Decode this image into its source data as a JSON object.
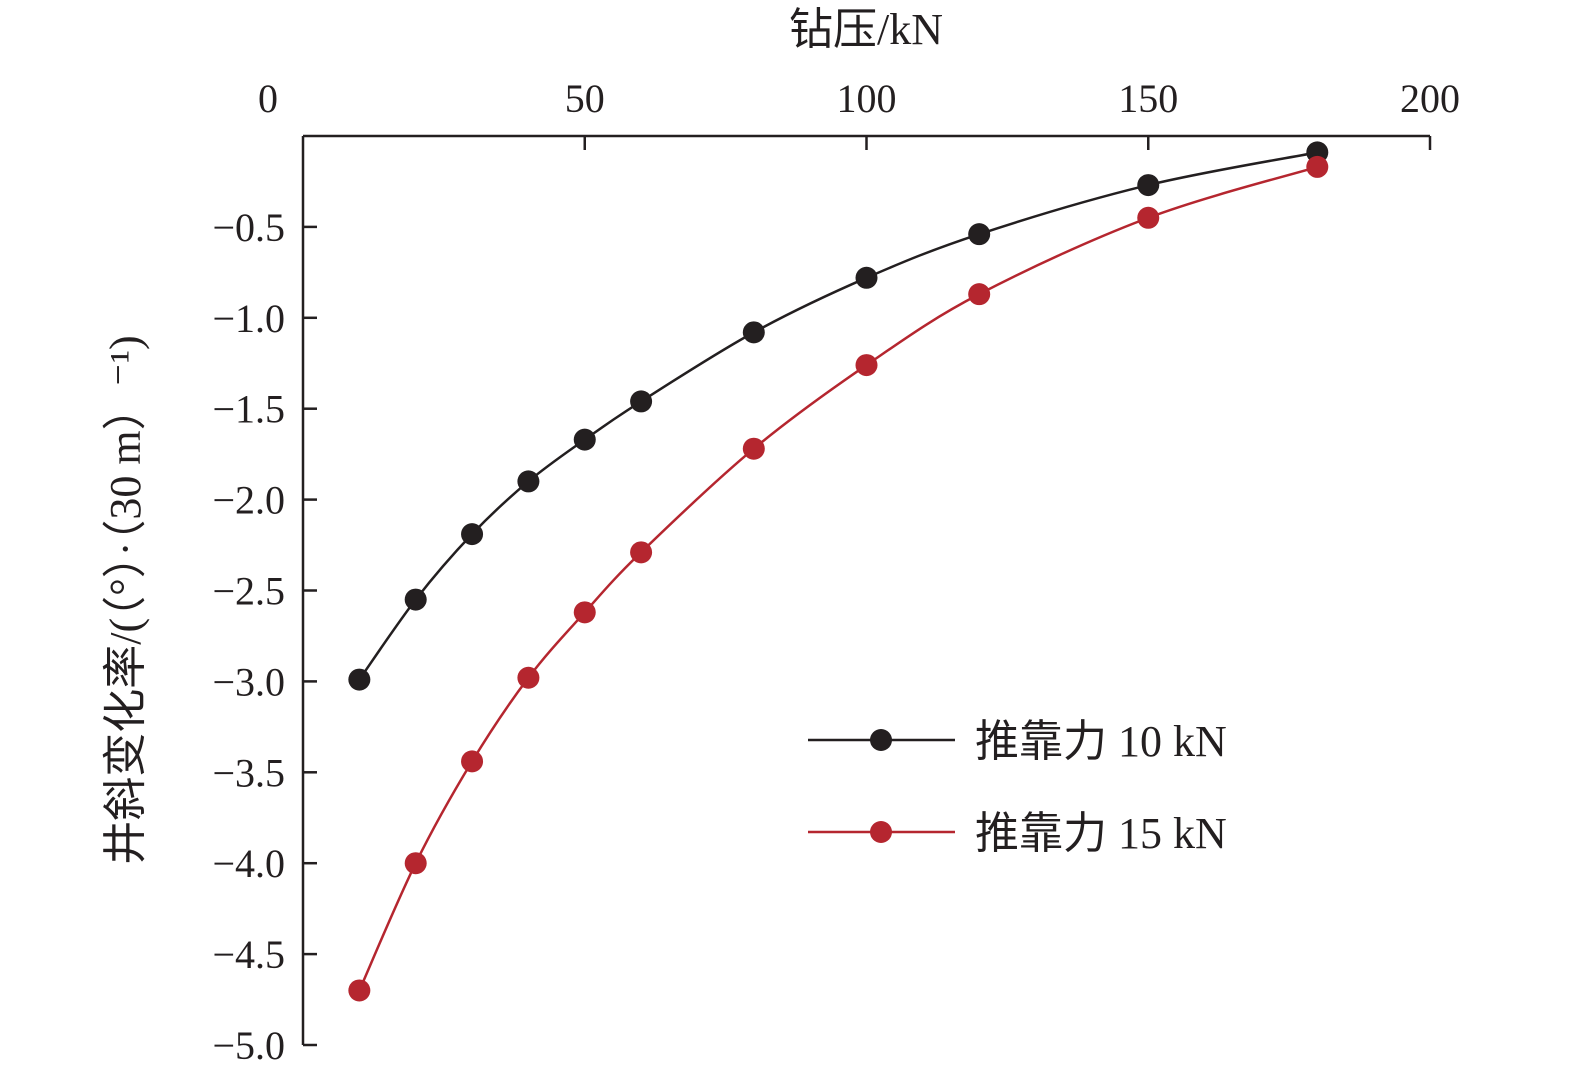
{
  "chart_data": {
    "type": "line",
    "xlabel": "钻压/kN",
    "ylabel": "井斜变化率/(（°）·（30 m）⁻¹)",
    "xlim": [
      0,
      200
    ],
    "ylim": [
      -5.0,
      0
    ],
    "x_axis_position": "top",
    "x_ticks": [
      0,
      50,
      100,
      150,
      200
    ],
    "x_tick_labels": [
      "0",
      "50",
      "100",
      "150",
      "200"
    ],
    "y_ticks": [
      -0.5,
      -1.0,
      -1.5,
      -2.0,
      -2.5,
      -3.0,
      -3.5,
      -4.0,
      -4.5,
      -5.0
    ],
    "y_tick_labels": [
      "−0.5",
      "−1.0",
      "−1.5",
      "−2.0",
      "−2.5",
      "−3.0",
      "−3.5",
      "−4.0",
      "−4.5",
      "−5.0"
    ],
    "grid": false,
    "legend_position": "bottom-right",
    "series": [
      {
        "name": "推靠力 10 kN",
        "color": "#231f20",
        "x": [
          10,
          20,
          30,
          40,
          50,
          60,
          80,
          100,
          120,
          150,
          180
        ],
        "y": [
          -2.99,
          -2.55,
          -2.19,
          -1.9,
          -1.67,
          -1.46,
          -1.08,
          -0.78,
          -0.54,
          -0.27,
          -0.09
        ]
      },
      {
        "name": "推靠力 15 kN",
        "color": "#b5262f",
        "x": [
          10,
          20,
          30,
          40,
          50,
          60,
          80,
          100,
          120,
          150,
          180
        ],
        "y": [
          -4.7,
          -4.0,
          -3.44,
          -2.98,
          -2.62,
          -2.29,
          -1.72,
          -1.26,
          -0.87,
          -0.45,
          -0.17
        ]
      }
    ]
  }
}
